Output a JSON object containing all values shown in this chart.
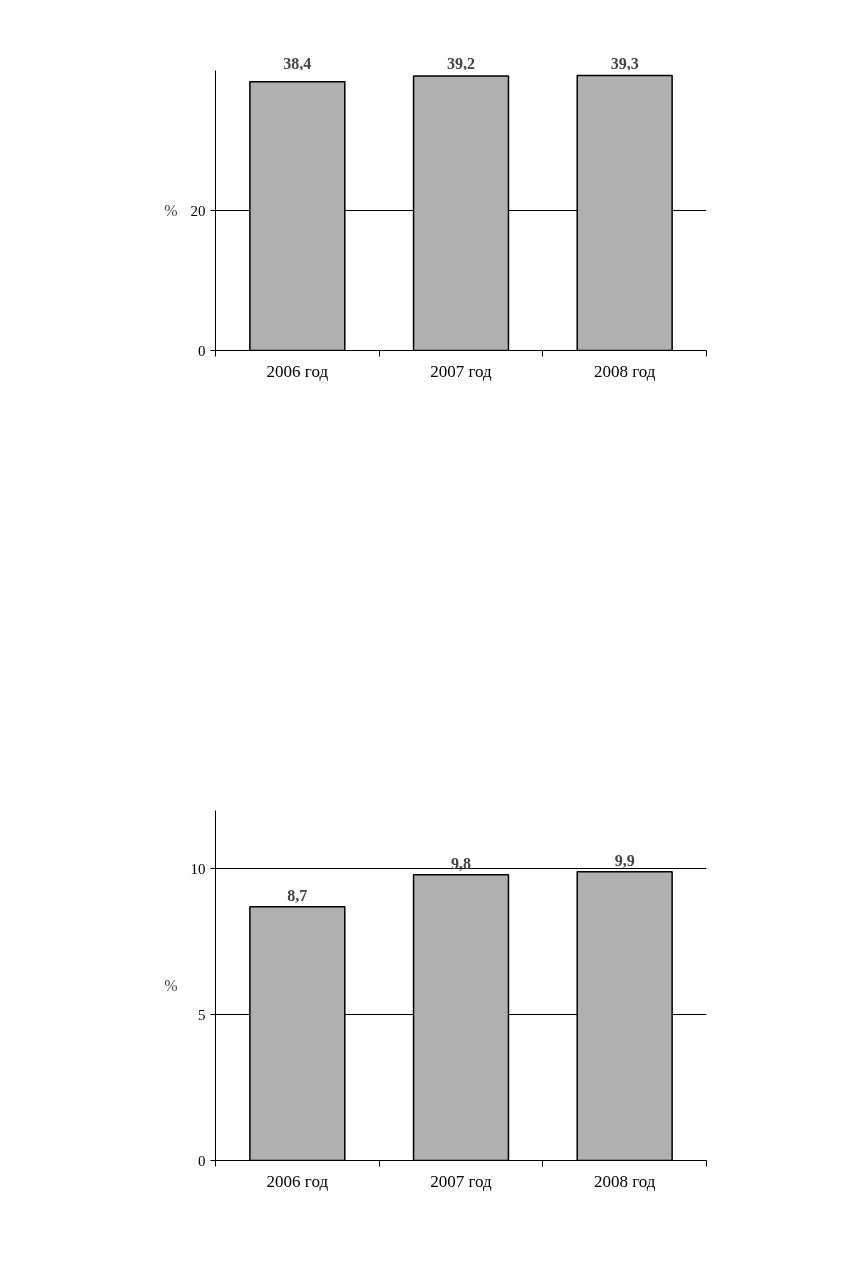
{
  "chart_data": [
    {
      "type": "bar",
      "categories": [
        "2006 год",
        "2007 год",
        "2008 год"
      ],
      "values": [
        38.4,
        39.2,
        39.3
      ],
      "value_labels": [
        "38,4",
        "39,2",
        "39,3"
      ],
      "color": "#b0b0b0",
      "ylabel": "%",
      "ylim": [
        0,
        40
      ],
      "yticks": [
        0,
        20
      ],
      "grid": "y"
    },
    {
      "type": "bar",
      "categories": [
        "2006 год",
        "2007 год",
        "2008 год"
      ],
      "values": [
        8.7,
        9.8,
        9.9
      ],
      "value_labels": [
        "8,7",
        "9,8",
        "9,9"
      ],
      "color": "#b0b0b0",
      "ylabel": "%",
      "ylim": [
        0,
        12
      ],
      "yticks": [
        0,
        5,
        10
      ],
      "grid": "y"
    }
  ]
}
